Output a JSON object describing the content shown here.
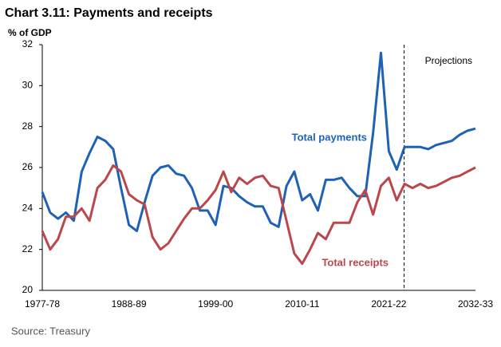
{
  "chart_data": {
    "type": "line",
    "title": "Chart 3.11: Payments and receipts",
    "y_label": "% of GDP",
    "annotation": "Projections",
    "source": "Source: Treasury",
    "categories": [
      "1977-78",
      null,
      null,
      null,
      null,
      null,
      null,
      null,
      null,
      null,
      null,
      "1988-89",
      null,
      null,
      null,
      null,
      null,
      null,
      null,
      null,
      null,
      null,
      "1999-00",
      null,
      null,
      null,
      null,
      null,
      null,
      null,
      null,
      null,
      null,
      "2010-11",
      null,
      null,
      null,
      null,
      null,
      null,
      null,
      null,
      null,
      null,
      "2021-22",
      null,
      null,
      null,
      null,
      null,
      null,
      null,
      null,
      null,
      null,
      "2032-33"
    ],
    "series": [
      {
        "name": "Total payments",
        "color": "#1f62b5",
        "values": [
          24.8,
          23.8,
          23.5,
          23.8,
          23.4,
          25.8,
          26.7,
          27.5,
          27.3,
          26.9,
          25.0,
          23.2,
          22.9,
          24.3,
          25.6,
          26.0,
          26.1,
          25.7,
          25.6,
          25.0,
          23.9,
          23.9,
          23.2,
          25.1,
          25.0,
          24.6,
          24.3,
          24.1,
          24.1,
          23.3,
          23.1,
          25.1,
          25.8,
          24.4,
          24.7,
          23.9,
          25.4,
          25.4,
          25.5,
          25.0,
          24.6,
          24.6,
          27.7,
          31.6,
          26.8,
          25.9,
          27.0,
          27.0,
          27.0,
          26.9,
          27.1,
          27.2,
          27.3,
          27.6,
          27.8,
          27.9
        ]
      },
      {
        "name": "Total receipts",
        "color": "#b9474b",
        "values": [
          22.9,
          22.0,
          22.5,
          23.6,
          23.6,
          24.0,
          23.4,
          25.0,
          25.4,
          26.1,
          25.8,
          24.7,
          24.4,
          24.2,
          22.6,
          22.0,
          22.3,
          22.9,
          23.5,
          24.0,
          24.0,
          24.4,
          24.9,
          25.8,
          24.8,
          25.5,
          25.2,
          25.5,
          25.6,
          25.1,
          25.0,
          23.4,
          21.8,
          21.3,
          22.0,
          22.8,
          22.5,
          23.3,
          23.3,
          23.3,
          24.3,
          24.9,
          23.7,
          25.1,
          25.5,
          24.4,
          25.2,
          25.0,
          25.2,
          25.0,
          25.1,
          25.3,
          25.5,
          25.6,
          25.8,
          26.0
        ]
      }
    ],
    "ylim": [
      20,
      32
    ],
    "yticks": [
      20,
      22,
      24,
      26,
      28,
      30,
      32
    ],
    "grid": false
  }
}
